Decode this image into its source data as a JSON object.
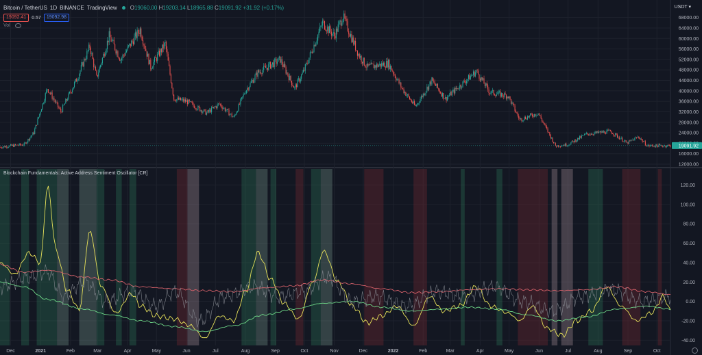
{
  "header": {
    "symbol": "Bitcoin / TetherUS",
    "interval": "1D",
    "exchange": "BINANCE",
    "source": "TradingView",
    "o_label": "O",
    "o": "19060.00",
    "h_label": "H",
    "h": "19203.14",
    "l_label": "L",
    "l": "18965.88",
    "c_label": "C",
    "c": "19091.92",
    "change": "+31.92 (+0.17%)",
    "sell_price": "19092.41",
    "spread": "0.57",
    "buy_price": "19092.98",
    "vol_label": "Vol",
    "currency": "USDT ▾"
  },
  "indicator": {
    "title": "Blockchain Fundamentals: Active Address Sentiment Oscillator [CR]"
  },
  "colors": {
    "bg": "#131722",
    "up": "#26a69a",
    "down": "#ef5350",
    "grid": "#1e222d",
    "yellow": "#e8e35a",
    "red_line": "#d9626b",
    "green_line": "#6fd888",
    "grey_line": "#8c8f96",
    "price_tag": "#26a69a"
  },
  "chart_data": [
    {
      "type": "candlestick",
      "title": "Bitcoin / TetherUS · 1D · BINANCE",
      "y_scale": "linear",
      "ylim": [
        12000,
        70000
      ],
      "y_ticks": [
        "68000.00",
        "64000.00",
        "60000.00",
        "56000.00",
        "52000.00",
        "48000.00",
        "44000.00",
        "40000.00",
        "36000.00",
        "32000.00",
        "28000.00",
        "24000.00",
        "20000.00",
        "16000.00",
        "12000.00"
      ],
      "last_price": "19091.92",
      "x_ticks": [
        "Dec",
        "2021",
        "Feb",
        "Mar",
        "Apr",
        "May",
        "Jun",
        "Jul",
        "Aug",
        "Sep",
        "Oct",
        "Nov",
        "Dec",
        "2022",
        "Feb",
        "Mar",
        "Apr",
        "May",
        "Jun",
        "Jul",
        "Aug",
        "Sep",
        "Oct"
      ],
      "x_range": [
        "2020-11-20",
        "2022-10-15"
      ],
      "path": [
        [
          "2020-11-20",
          18500
        ],
        [
          "2020-12-01",
          19000
        ],
        [
          "2020-12-15",
          19500
        ],
        [
          "2020-12-25",
          24000
        ],
        [
          "2021-01-08",
          41000
        ],
        [
          "2021-01-22",
          32000
        ],
        [
          "2021-02-08",
          45000
        ],
        [
          "2021-02-21",
          57000
        ],
        [
          "2021-02-28",
          45000
        ],
        [
          "2021-03-13",
          61000
        ],
        [
          "2021-03-25",
          52000
        ],
        [
          "2021-04-14",
          63500
        ],
        [
          "2021-04-25",
          49000
        ],
        [
          "2021-05-10",
          58000
        ],
        [
          "2021-05-19",
          37000
        ],
        [
          "2021-06-01",
          36000
        ],
        [
          "2021-06-22",
          31500
        ],
        [
          "2021-07-05",
          35000
        ],
        [
          "2021-07-20",
          29800
        ],
        [
          "2021-08-01",
          40000
        ],
        [
          "2021-08-14",
          47000
        ],
        [
          "2021-09-06",
          52000
        ],
        [
          "2021-09-21",
          41000
        ],
        [
          "2021-10-01",
          48000
        ],
        [
          "2021-10-20",
          66000
        ],
        [
          "2021-11-01",
          61000
        ],
        [
          "2021-11-10",
          68500
        ],
        [
          "2021-11-26",
          54000
        ],
        [
          "2021-12-05",
          49000
        ],
        [
          "2021-12-27",
          50500
        ],
        [
          "2022-01-10",
          41000
        ],
        [
          "2022-01-24",
          34000
        ],
        [
          "2022-02-10",
          44000
        ],
        [
          "2022-02-24",
          37000
        ],
        [
          "2022-03-28",
          47500
        ],
        [
          "2022-04-11",
          39500
        ],
        [
          "2022-04-30",
          38000
        ],
        [
          "2022-05-12",
          29000
        ],
        [
          "2022-05-31",
          31500
        ],
        [
          "2022-06-18",
          19000
        ],
        [
          "2022-07-01",
          19500
        ],
        [
          "2022-07-20",
          23500
        ],
        [
          "2022-08-14",
          24500
        ],
        [
          "2022-08-31",
          20000
        ],
        [
          "2022-09-12",
          22500
        ],
        [
          "2022-09-21",
          19000
        ],
        [
          "2022-10-15",
          19100
        ]
      ]
    },
    {
      "type": "line",
      "title": "Blockchain Fundamentals: Active Address Sentiment Oscillator [CR]",
      "ylim": [
        -44,
        126
      ],
      "y_ticks": [
        "120.00",
        "100.00",
        "80.00",
        "60.00",
        "40.00",
        "20.00",
        "0.00",
        "-20.00",
        "-40.00"
      ],
      "series": [
        {
          "color": "#e8e35a",
          "points": [
            [
              "2020-11-20",
              40
            ],
            [
              "2020-12-05",
              28
            ],
            [
              "2020-12-20",
              50
            ],
            [
              "2021-01-01",
              40
            ],
            [
              "2021-01-08",
              118
            ],
            [
              "2021-01-18",
              50
            ],
            [
              "2021-01-28",
              12
            ],
            [
              "2021-02-10",
              -8
            ],
            [
              "2021-02-21",
              72
            ],
            [
              "2021-03-05",
              15
            ],
            [
              "2021-03-20",
              -12
            ],
            [
              "2021-04-05",
              8
            ],
            [
              "2021-04-15",
              -5
            ],
            [
              "2021-05-01",
              -15
            ],
            [
              "2021-05-19",
              -18
            ],
            [
              "2021-06-05",
              -25
            ],
            [
              "2021-06-20",
              -38
            ],
            [
              "2021-07-05",
              -15
            ],
            [
              "2021-07-20",
              -20
            ],
            [
              "2021-08-01",
              10
            ],
            [
              "2021-08-14",
              50
            ],
            [
              "2021-08-28",
              22
            ],
            [
              "2021-09-10",
              -2
            ],
            [
              "2021-09-25",
              -18
            ],
            [
              "2021-10-10",
              20
            ],
            [
              "2021-10-21",
              52
            ],
            [
              "2021-11-05",
              20
            ],
            [
              "2021-11-20",
              -5
            ],
            [
              "2021-12-05",
              -22
            ],
            [
              "2021-12-20",
              -15
            ],
            [
              "2022-01-05",
              -5
            ],
            [
              "2022-01-22",
              -25
            ],
            [
              "2022-02-08",
              5
            ],
            [
              "2022-02-22",
              -10
            ],
            [
              "2022-03-10",
              -5
            ],
            [
              "2022-03-28",
              15
            ],
            [
              "2022-04-12",
              -5
            ],
            [
              "2022-04-30",
              -12
            ],
            [
              "2022-05-12",
              -20
            ],
            [
              "2022-05-25",
              -5
            ],
            [
              "2022-06-10",
              -28
            ],
            [
              "2022-06-25",
              -35
            ],
            [
              "2022-07-10",
              -20
            ],
            [
              "2022-07-25",
              -10
            ],
            [
              "2022-08-10",
              15
            ],
            [
              "2022-08-25",
              -5
            ],
            [
              "2022-09-10",
              -20
            ],
            [
              "2022-09-25",
              -12
            ],
            [
              "2022-10-08",
              5
            ],
            [
              "2022-10-15",
              -10
            ]
          ]
        },
        {
          "color": "#d9626b",
          "points": [
            [
              "2020-11-20",
              38
            ],
            [
              "2020-12-15",
              30
            ],
            [
              "2021-01-08",
              32
            ],
            [
              "2021-02-15",
              25
            ],
            [
              "2021-03-15",
              22
            ],
            [
              "2021-04-15",
              15
            ],
            [
              "2021-05-20",
              13
            ],
            [
              "2021-06-20",
              11
            ],
            [
              "2021-07-20",
              10
            ],
            [
              "2021-08-20",
              14
            ],
            [
              "2021-09-20",
              16
            ],
            [
              "2021-10-20",
              22
            ],
            [
              "2021-11-20",
              18
            ],
            [
              "2021-12-20",
              13
            ],
            [
              "2022-01-20",
              9
            ],
            [
              "2022-02-20",
              10
            ],
            [
              "2022-03-20",
              12
            ],
            [
              "2022-04-20",
              13
            ],
            [
              "2022-05-20",
              12
            ],
            [
              "2022-06-20",
              11
            ],
            [
              "2022-07-20",
              12
            ],
            [
              "2022-08-20",
              15
            ],
            [
              "2022-09-20",
              10
            ],
            [
              "2022-10-15",
              7
            ]
          ]
        },
        {
          "color": "#6fd888",
          "points": [
            [
              "2020-11-20",
              20
            ],
            [
              "2020-12-15",
              15
            ],
            [
              "2021-01-08",
              2
            ],
            [
              "2021-02-15",
              -8
            ],
            [
              "2021-03-15",
              -14
            ],
            [
              "2021-04-15",
              -20
            ],
            [
              "2021-05-20",
              -26
            ],
            [
              "2021-06-20",
              -31
            ],
            [
              "2021-07-20",
              -25
            ],
            [
              "2021-08-20",
              -14
            ],
            [
              "2021-09-20",
              -8
            ],
            [
              "2021-10-20",
              -2
            ],
            [
              "2021-11-20",
              0
            ],
            [
              "2021-12-20",
              -6
            ],
            [
              "2022-01-20",
              -10
            ],
            [
              "2022-02-20",
              -8
            ],
            [
              "2022-03-20",
              -6
            ],
            [
              "2022-04-20",
              -8
            ],
            [
              "2022-05-20",
              -14
            ],
            [
              "2022-06-20",
              -20
            ],
            [
              "2022-07-20",
              -16
            ],
            [
              "2022-08-20",
              -8
            ],
            [
              "2022-09-20",
              -5
            ],
            [
              "2022-10-15",
              -8
            ]
          ]
        },
        {
          "color": "#8c8f96",
          "points": [
            [
              "2020-11-20",
              15
            ],
            [
              "2020-12-20",
              25
            ],
            [
              "2021-01-08",
              30
            ],
            [
              "2021-01-25",
              5
            ],
            [
              "2021-02-15",
              20
            ],
            [
              "2021-03-10",
              0
            ],
            [
              "2021-04-05",
              10
            ],
            [
              "2021-05-01",
              -5
            ],
            [
              "2021-05-20",
              10
            ],
            [
              "2021-06-15",
              -20
            ],
            [
              "2021-07-10",
              5
            ],
            [
              "2021-08-10",
              15
            ],
            [
              "2021-09-05",
              5
            ],
            [
              "2021-10-01",
              10
            ],
            [
              "2021-10-25",
              25
            ],
            [
              "2021-11-20",
              0
            ],
            [
              "2021-12-15",
              5
            ],
            [
              "2022-01-15",
              -5
            ],
            [
              "2022-02-15",
              10
            ],
            [
              "2022-03-15",
              5
            ],
            [
              "2022-04-15",
              15
            ],
            [
              "2022-05-15",
              0
            ],
            [
              "2022-06-15",
              -10
            ],
            [
              "2022-07-15",
              5
            ],
            [
              "2022-08-15",
              12
            ],
            [
              "2022-09-15",
              0
            ],
            [
              "2022-10-15",
              5
            ]
          ]
        }
      ],
      "bands": [
        {
          "from": "2020-11-20",
          "to": "2020-11-30",
          "type": "bull"
        },
        {
          "from": "2020-12-12",
          "to": "2020-12-20",
          "type": "bull"
        },
        {
          "from": "2020-12-28",
          "to": "2021-01-18",
          "type": "bull"
        },
        {
          "from": "2021-01-18",
          "to": "2021-01-30",
          "type": "bull_strong"
        },
        {
          "from": "2021-02-10",
          "to": "2021-02-28",
          "type": "bull_strong"
        },
        {
          "from": "2021-02-28",
          "to": "2021-03-08",
          "type": "bull"
        },
        {
          "from": "2021-03-20",
          "to": "2021-03-26",
          "type": "bull"
        },
        {
          "from": "2021-04-03",
          "to": "2021-04-10",
          "type": "bull"
        },
        {
          "from": "2021-05-22",
          "to": "2021-06-02",
          "type": "bear"
        },
        {
          "from": "2021-06-02",
          "to": "2021-06-14",
          "type": "bear_strong"
        },
        {
          "from": "2021-07-28",
          "to": "2021-08-12",
          "type": "bull"
        },
        {
          "from": "2021-08-12",
          "to": "2021-08-24",
          "type": "bull_strong"
        },
        {
          "from": "2021-08-27",
          "to": "2021-09-02",
          "type": "bull"
        },
        {
          "from": "2021-09-22",
          "to": "2021-09-30",
          "type": "bear"
        },
        {
          "from": "2021-10-08",
          "to": "2021-10-18",
          "type": "bull"
        },
        {
          "from": "2021-10-18",
          "to": "2021-10-30",
          "type": "bull_strong"
        },
        {
          "from": "2021-12-02",
          "to": "2021-12-22",
          "type": "bear"
        },
        {
          "from": "2022-01-22",
          "to": "2022-02-05",
          "type": "bear"
        },
        {
          "from": "2022-03-12",
          "to": "2022-03-16",
          "type": "bull"
        },
        {
          "from": "2022-04-18",
          "to": "2022-04-24",
          "type": "bull"
        },
        {
          "from": "2022-05-10",
          "to": "2022-06-10",
          "type": "bear"
        },
        {
          "from": "2022-06-14",
          "to": "2022-06-20",
          "type": "bear_strong"
        },
        {
          "from": "2022-06-24",
          "to": "2022-07-06",
          "type": "bear_strong"
        },
        {
          "from": "2022-07-22",
          "to": "2022-08-06",
          "type": "bull"
        },
        {
          "from": "2022-08-26",
          "to": "2022-09-14",
          "type": "bear"
        },
        {
          "from": "2022-10-02",
          "to": "2022-10-06",
          "type": "bear"
        }
      ]
    }
  ]
}
